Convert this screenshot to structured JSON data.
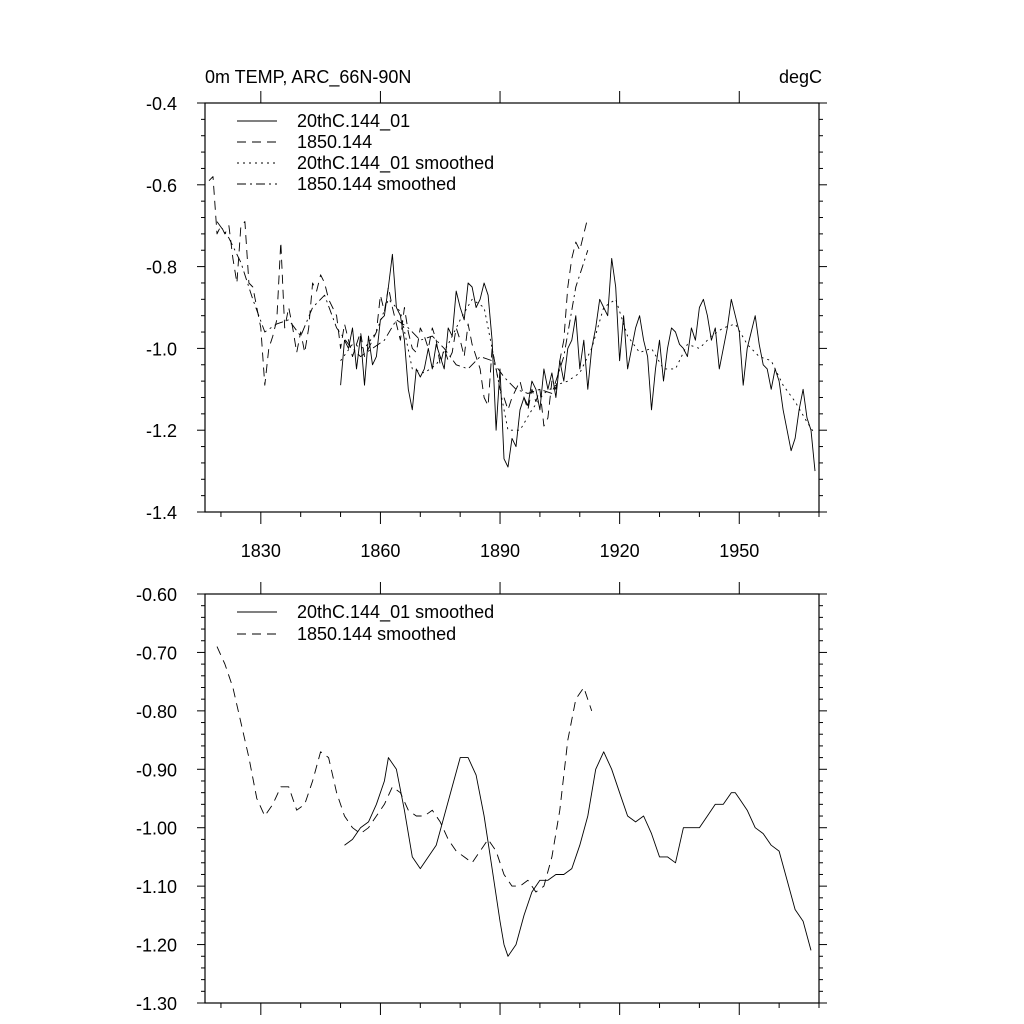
{
  "header": {
    "title": "0m TEMP, ARC_66N-90N",
    "units": "degC"
  },
  "chart_data": [
    {
      "type": "line",
      "xlim": [
        1816,
        1970
      ],
      "ylim": [
        -1.4,
        -0.4
      ],
      "ytick_labels": [
        "-0.4",
        "-0.6",
        "-0.8",
        "-1.0",
        "-1.2",
        "-1.4"
      ],
      "yticks": [
        -0.4,
        -0.6,
        -0.8,
        -1.0,
        -1.2,
        -1.4
      ],
      "xtick_labels": [
        "1830",
        "1860",
        "1890",
        "1920",
        "1950"
      ],
      "xticks": [
        1830,
        1860,
        1890,
        1920,
        1950
      ],
      "legend": [
        "20thC.144_01",
        "1850.144",
        "20thC.144_01 smoothed",
        "1850.144 smoothed"
      ],
      "series": [
        {
          "name": "20thC.144_01",
          "style": "solid",
          "x": [
            1850,
            1851,
            1852,
            1853,
            1854,
            1855,
            1856,
            1857,
            1858,
            1859,
            1860,
            1861,
            1862,
            1863,
            1864,
            1865,
            1866,
            1867,
            1868,
            1869,
            1870,
            1871,
            1872,
            1873,
            1874,
            1875,
            1876,
            1877,
            1878,
            1879,
            1880,
            1881,
            1882,
            1883,
            1884,
            1885,
            1886,
            1887,
            1888,
            1889,
            1890,
            1891,
            1892,
            1893,
            1894,
            1895,
            1896,
            1897,
            1898,
            1899,
            1900,
            1901,
            1902,
            1903,
            1904,
            1905,
            1906,
            1907,
            1908,
            1909,
            1910,
            1911,
            1912,
            1913,
            1914,
            1915,
            1916,
            1917,
            1918,
            1919,
            1920,
            1921,
            1922,
            1923,
            1924,
            1925,
            1926,
            1927,
            1928,
            1929,
            1930,
            1931,
            1932,
            1933,
            1934,
            1935,
            1936,
            1937,
            1938,
            1939,
            1940,
            1941,
            1942,
            1943,
            1944,
            1945,
            1946,
            1947,
            1948,
            1949,
            1950,
            1951,
            1952,
            1953,
            1954,
            1955,
            1956,
            1957,
            1958,
            1959,
            1960,
            1961,
            1962,
            1963,
            1964,
            1965,
            1966,
            1967,
            1968,
            1969
          ],
          "values": [
            -1.09,
            -0.98,
            -1.0,
            -0.95,
            -1.05,
            -0.97,
            -1.09,
            -0.97,
            -1.04,
            -1.02,
            -0.93,
            -0.92,
            -0.85,
            -0.77,
            -0.9,
            -0.92,
            -0.98,
            -1.1,
            -1.15,
            -1.05,
            -1.07,
            -1.05,
            -1.0,
            -1.05,
            -0.99,
            -1.02,
            -1.05,
            -0.95,
            -0.97,
            -0.86,
            -0.9,
            -0.93,
            -0.84,
            -0.85,
            -0.9,
            -0.88,
            -0.84,
            -0.87,
            -0.98,
            -1.2,
            -1.05,
            -1.27,
            -1.29,
            -1.22,
            -1.24,
            -1.15,
            -1.12,
            -1.14,
            -1.08,
            -1.1,
            -1.15,
            -1.05,
            -1.1,
            -1.06,
            -1.12,
            -1.03,
            -1.08,
            -1.0,
            -0.98,
            -0.92,
            -1.05,
            -0.98,
            -1.1,
            -1.0,
            -0.95,
            -0.88,
            -0.9,
            -0.92,
            -0.78,
            -0.85,
            -1.03,
            -0.92,
            -1.05,
            -1.0,
            -0.95,
            -0.92,
            -0.98,
            -1.02,
            -1.15,
            -1.05,
            -0.98,
            -1.08,
            -1.0,
            -0.95,
            -0.96,
            -0.99,
            -1.0,
            -1.02,
            -0.95,
            -0.98,
            -0.9,
            -0.88,
            -0.92,
            -0.98,
            -0.95,
            -1.05,
            -1.0,
            -0.95,
            -0.88,
            -0.92,
            -0.96,
            -1.09,
            -1.0,
            -0.96,
            -0.92,
            -0.99,
            -1.04,
            -1.05,
            -1.1,
            -1.05,
            -1.08,
            -1.15,
            -1.2,
            -1.25,
            -1.22,
            -1.15,
            -1.1,
            -1.17,
            -1.2,
            -1.3
          ]
        },
        {
          "name": "1850.144",
          "style": "dash",
          "x": [
            1817,
            1818,
            1819,
            1820,
            1821,
            1822,
            1823,
            1824,
            1825,
            1826,
            1827,
            1828,
            1829,
            1830,
            1831,
            1832,
            1833,
            1834,
            1835,
            1836,
            1837,
            1838,
            1839,
            1840,
            1841,
            1842,
            1843,
            1844,
            1845,
            1846,
            1847,
            1848,
            1849,
            1850,
            1851,
            1852,
            1853,
            1854,
            1855,
            1856,
            1857,
            1858,
            1859,
            1860,
            1861,
            1862,
            1863,
            1864,
            1865,
            1866,
            1867,
            1868,
            1869,
            1870,
            1871,
            1872,
            1873,
            1874,
            1875,
            1876,
            1877,
            1878,
            1879,
            1880,
            1881,
            1882,
            1883,
            1884,
            1885,
            1886,
            1887,
            1888,
            1889,
            1890,
            1891,
            1892,
            1893,
            1894,
            1895,
            1896,
            1897,
            1898,
            1899,
            1900,
            1901,
            1902,
            1903,
            1904,
            1905,
            1906,
            1907,
            1908,
            1909,
            1910,
            1911,
            1912
          ],
          "values": [
            -0.59,
            -0.58,
            -0.72,
            -0.7,
            -0.72,
            -0.7,
            -0.78,
            -0.84,
            -0.7,
            -0.69,
            -0.84,
            -0.85,
            -0.9,
            -0.95,
            -1.09,
            -1.0,
            -0.97,
            -0.93,
            -0.74,
            -0.95,
            -0.9,
            -0.95,
            -1.01,
            -0.96,
            -1.01,
            -0.95,
            -0.84,
            -0.86,
            -0.82,
            -0.84,
            -0.88,
            -0.9,
            -0.92,
            -1.0,
            -0.94,
            -0.98,
            -1.02,
            -0.99,
            -0.96,
            -1.02,
            -1.0,
            -0.98,
            -0.96,
            -0.87,
            -0.91,
            -0.85,
            -0.9,
            -0.94,
            -0.98,
            -0.9,
            -0.96,
            -1.0,
            -1.01,
            -0.95,
            -0.97,
            -1.0,
            -0.95,
            -0.98,
            -1.04,
            -1.0,
            -1.03,
            -1.01,
            -0.95,
            -0.98,
            -1.02,
            -0.94,
            -0.99,
            -1.02,
            -1.05,
            -1.12,
            -1.14,
            -1.0,
            -1.05,
            -1.1,
            -1.12,
            -1.15,
            -1.12,
            -1.1,
            -1.08,
            -1.12,
            -1.15,
            -1.1,
            -1.13,
            -1.1,
            -1.19,
            -1.17,
            -1.08,
            -1.1,
            -1.03,
            -0.98,
            -0.85,
            -0.78,
            -0.74,
            -0.76,
            -0.72,
            -0.68
          ]
        },
        {
          "name": "20thC.144_01 smoothed",
          "style": "dot",
          "x": [
            1850,
            1853,
            1856,
            1859,
            1862,
            1865,
            1868,
            1871,
            1874,
            1877,
            1880,
            1883,
            1886,
            1889,
            1892,
            1895,
            1898,
            1901,
            1904,
            1907,
            1910,
            1913,
            1916,
            1919,
            1922,
            1925,
            1928,
            1931,
            1934,
            1937,
            1940,
            1943,
            1946,
            1949,
            1952,
            1955,
            1958,
            1961,
            1964,
            1967,
            1969
          ],
          "values": [
            -1.03,
            -0.99,
            -1.0,
            -0.96,
            -0.88,
            -0.91,
            -1.05,
            -1.06,
            -1.04,
            -0.99,
            -0.93,
            -0.88,
            -0.9,
            -1.05,
            -1.2,
            -1.2,
            -1.15,
            -1.11,
            -1.09,
            -1.08,
            -1.06,
            -1.0,
            -0.9,
            -0.88,
            -0.97,
            -1.01,
            -1.0,
            -1.05,
            -1.05,
            -0.99,
            -1.0,
            -0.97,
            -0.95,
            -0.94,
            -0.99,
            -1.02,
            -1.03,
            -1.09,
            -1.13,
            -1.18,
            -1.21
          ]
        },
        {
          "name": "1850.144 smoothed",
          "style": "dashdot",
          "x": [
            1819,
            1822,
            1825,
            1828,
            1831,
            1834,
            1837,
            1840,
            1843,
            1846,
            1849,
            1852,
            1855,
            1858,
            1861,
            1864,
            1867,
            1870,
            1873,
            1876,
            1879,
            1882,
            1885,
            1888,
            1891,
            1894,
            1897,
            1900,
            1903,
            1906,
            1909,
            1912
          ],
          "values": [
            -0.69,
            -0.73,
            -0.79,
            -0.88,
            -0.96,
            -0.94,
            -0.93,
            -0.97,
            -0.9,
            -0.87,
            -0.95,
            -0.99,
            -1.02,
            -1.0,
            -0.98,
            -0.93,
            -0.95,
            -0.98,
            -0.97,
            -1.0,
            -1.04,
            -1.05,
            -1.02,
            -1.03,
            -1.07,
            -1.1,
            -1.11,
            -1.1,
            -1.11,
            -1.02,
            -0.85,
            -0.76
          ]
        }
      ]
    },
    {
      "type": "line",
      "xlim": [
        1816,
        1970
      ],
      "ylim": [
        -1.3,
        -0.6
      ],
      "ytick_labels": [
        "-0.60",
        "-0.70",
        "-0.80",
        "-0.90",
        "-1.00",
        "-1.10",
        "-1.20",
        "-1.30"
      ],
      "yticks": [
        -0.6,
        -0.7,
        -0.8,
        -0.9,
        -1.0,
        -1.1,
        -1.2,
        -1.3
      ],
      "xticks": [
        1830,
        1860,
        1890,
        1920,
        1950
      ],
      "legend": [
        "20thC.144_01 smoothed",
        "1850.144 smoothed"
      ],
      "series": [
        {
          "name": "20thC.144_01 smoothed",
          "style": "solid",
          "x": [
            1851,
            1853,
            1855,
            1857,
            1859,
            1861,
            1862,
            1864,
            1866,
            1868,
            1870,
            1872,
            1874,
            1876,
            1878,
            1880,
            1882,
            1884,
            1886,
            1888,
            1890,
            1891,
            1892,
            1894,
            1896,
            1898,
            1900,
            1902,
            1904,
            1906,
            1908,
            1910,
            1912,
            1914,
            1916,
            1918,
            1920,
            1922,
            1924,
            1926,
            1928,
            1930,
            1932,
            1934,
            1936,
            1938,
            1940,
            1942,
            1944,
            1946,
            1948,
            1949,
            1950,
            1952,
            1954,
            1956,
            1958,
            1960,
            1962,
            1964,
            1966,
            1968
          ],
          "values": [
            -1.03,
            -1.02,
            -1.0,
            -0.99,
            -0.96,
            -0.92,
            -0.88,
            -0.9,
            -0.97,
            -1.05,
            -1.07,
            -1.05,
            -1.03,
            -0.98,
            -0.93,
            -0.88,
            -0.88,
            -0.91,
            -0.98,
            -1.07,
            -1.16,
            -1.2,
            -1.22,
            -1.2,
            -1.15,
            -1.11,
            -1.09,
            -1.09,
            -1.08,
            -1.08,
            -1.07,
            -1.03,
            -0.98,
            -0.9,
            -0.87,
            -0.9,
            -0.94,
            -0.98,
            -0.99,
            -0.98,
            -1.01,
            -1.05,
            -1.05,
            -1.06,
            -1.0,
            -1.0,
            -1.0,
            -0.98,
            -0.96,
            -0.96,
            -0.94,
            -0.94,
            -0.95,
            -0.97,
            -1.0,
            -1.01,
            -1.03,
            -1.04,
            -1.09,
            -1.14,
            -1.16,
            -1.21
          ]
        },
        {
          "name": "1850.144 smoothed",
          "style": "dash",
          "x": [
            1819,
            1821,
            1823,
            1825,
            1827,
            1829,
            1831,
            1833,
            1835,
            1837,
            1839,
            1841,
            1843,
            1845,
            1847,
            1849,
            1851,
            1853,
            1855,
            1857,
            1859,
            1861,
            1863,
            1865,
            1867,
            1869,
            1871,
            1873,
            1875,
            1877,
            1879,
            1881,
            1883,
            1885,
            1887,
            1889,
            1891,
            1893,
            1895,
            1897,
            1899,
            1901,
            1903,
            1905,
            1907,
            1909,
            1911,
            1913
          ],
          "values": [
            -0.69,
            -0.72,
            -0.76,
            -0.82,
            -0.88,
            -0.95,
            -0.98,
            -0.96,
            -0.93,
            -0.93,
            -0.97,
            -0.96,
            -0.92,
            -0.87,
            -0.88,
            -0.94,
            -0.98,
            -1.0,
            -1.01,
            -1.0,
            -0.98,
            -0.96,
            -0.93,
            -0.94,
            -0.97,
            -0.98,
            -0.98,
            -0.97,
            -0.99,
            -1.02,
            -1.04,
            -1.05,
            -1.06,
            -1.04,
            -1.02,
            -1.04,
            -1.08,
            -1.1,
            -1.1,
            -1.09,
            -1.11,
            -1.1,
            -1.05,
            -0.97,
            -0.85,
            -0.78,
            -0.76,
            -0.8
          ]
        }
      ]
    }
  ]
}
